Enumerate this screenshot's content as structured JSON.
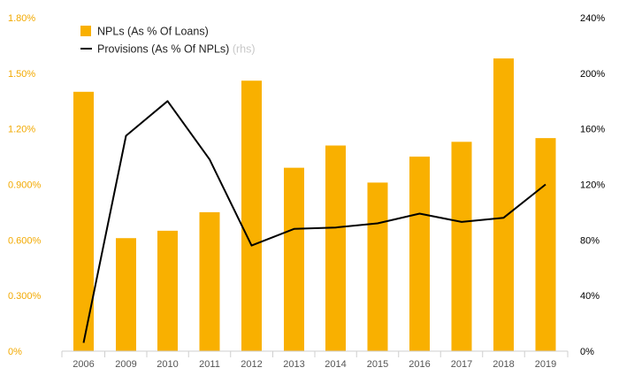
{
  "chart_data": {
    "type": "bar",
    "categories": [
      "2006",
      "2009",
      "2010",
      "2011",
      "2012",
      "2013",
      "2014",
      "2015",
      "2016",
      "2017",
      "2018",
      "2019"
    ],
    "series": [
      {
        "name": "NPLs (As % Of Loans)",
        "type": "bar",
        "axis": "left",
        "values": [
          1.4,
          0.61,
          0.65,
          0.75,
          1.46,
          0.99,
          1.11,
          0.91,
          1.05,
          1.13,
          1.58,
          1.15
        ]
      },
      {
        "name": "Provisions (As % Of NPLs)",
        "type": "line",
        "axis": "right",
        "values": [
          6,
          155,
          180,
          138,
          76,
          88,
          89,
          92,
          99,
          93,
          96,
          120
        ]
      }
    ],
    "legend_suffix": "(rhs)",
    "y_left": {
      "min": 0,
      "max": 1.8,
      "ticks": [
        "0%",
        "0.300%",
        "0.600%",
        "0.900%",
        "1.20%",
        "1.50%",
        "1.80%"
      ]
    },
    "y_right": {
      "min": 0,
      "max": 240,
      "ticks": [
        "0%",
        "40%",
        "80%",
        "120%",
        "160%",
        "200%",
        "240%"
      ]
    },
    "xlabel": "",
    "ylabel": "",
    "legend_position": "top-left",
    "colors": {
      "bar": "#f9b000",
      "line": "#000000",
      "left_ticks": "#f2a900",
      "right_ticks": "#000000",
      "x_ticks": "#555555"
    }
  }
}
